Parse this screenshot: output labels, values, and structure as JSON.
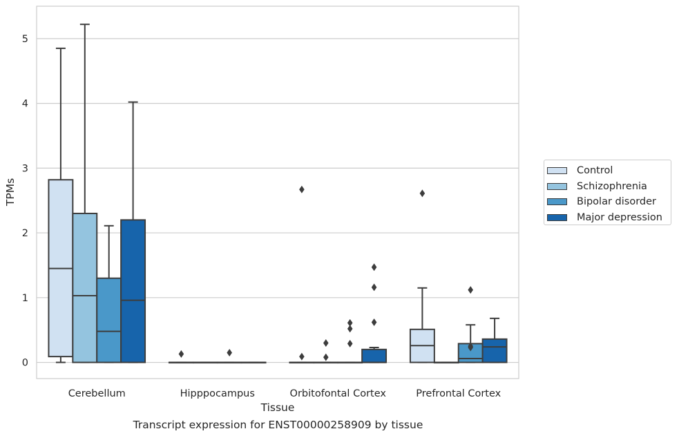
{
  "caption": "Transcript expression for ENST00000258909 by tissue",
  "chart_data": {
    "type": "box",
    "xlabel": "Tissue",
    "ylabel": "TPMs",
    "ylim": [
      -0.25,
      5.5
    ],
    "yticks": [
      0,
      1,
      2,
      3,
      4,
      5
    ],
    "grid": "horizontal",
    "legend_position": "right",
    "categories": [
      "Cerebellum",
      "Hipppocampus",
      "Orbitofontal Cortex",
      "Prefrontal Cortex"
    ],
    "series": [
      {
        "name": "Control",
        "color": "#d0e1f2",
        "boxes": [
          {
            "min": 0,
            "q1": 0.09,
            "median": 1.45,
            "q3": 2.82,
            "max": 4.85,
            "outliers": []
          },
          {
            "min": 0,
            "q1": 0,
            "median": 0,
            "q3": 0,
            "max": 0,
            "outliers": [
              0.13
            ]
          },
          {
            "min": 0,
            "q1": 0,
            "median": 0,
            "q3": 0,
            "max": 0,
            "outliers": [
              2.67,
              0.09
            ]
          },
          {
            "min": 0,
            "q1": 0,
            "median": 0.26,
            "q3": 0.51,
            "max": 1.15,
            "outliers": [
              2.61
            ]
          }
        ]
      },
      {
        "name": "Schizophrenia",
        "color": "#94c4df",
        "boxes": [
          {
            "min": 0,
            "q1": 0,
            "median": 1.03,
            "q3": 2.3,
            "max": 5.22,
            "outliers": []
          },
          {
            "min": 0,
            "q1": 0,
            "median": 0,
            "q3": 0,
            "max": 0,
            "outliers": []
          },
          {
            "min": 0,
            "q1": 0,
            "median": 0,
            "q3": 0,
            "max": 0,
            "outliers": [
              0.3,
              0.08
            ]
          },
          {
            "min": 0,
            "q1": 0,
            "median": 0,
            "q3": 0,
            "max": 0,
            "outliers": []
          }
        ]
      },
      {
        "name": "Bipolar disorder",
        "color": "#4a98c9",
        "boxes": [
          {
            "min": 0,
            "q1": 0,
            "median": 0.48,
            "q3": 1.3,
            "max": 2.11,
            "outliers": []
          },
          {
            "min": 0,
            "q1": 0,
            "median": 0,
            "q3": 0,
            "max": 0,
            "outliers": [
              0.15
            ]
          },
          {
            "min": 0,
            "q1": 0,
            "median": 0,
            "q3": 0,
            "max": 0,
            "outliers": [
              0.61,
              0.52,
              0.29
            ]
          },
          {
            "min": 0,
            "q1": 0,
            "median": 0.06,
            "q3": 0.29,
            "max": 0.58,
            "outliers": [
              1.12,
              0.25,
              0.23
            ]
          }
        ]
      },
      {
        "name": "Major depression",
        "color": "#1764ab",
        "boxes": [
          {
            "min": 0,
            "q1": 0,
            "median": 0.96,
            "q3": 2.2,
            "max": 4.02,
            "outliers": []
          },
          {
            "min": 0,
            "q1": 0,
            "median": 0,
            "q3": 0,
            "max": 0,
            "outliers": []
          },
          {
            "min": 0,
            "q1": 0,
            "median": 0,
            "q3": 0.2,
            "max": 0.23,
            "outliers": [
              1.47,
              1.16,
              0.62
            ]
          },
          {
            "min": 0,
            "q1": 0,
            "median": 0.24,
            "q3": 0.36,
            "max": 0.68,
            "outliers": []
          }
        ]
      }
    ]
  }
}
